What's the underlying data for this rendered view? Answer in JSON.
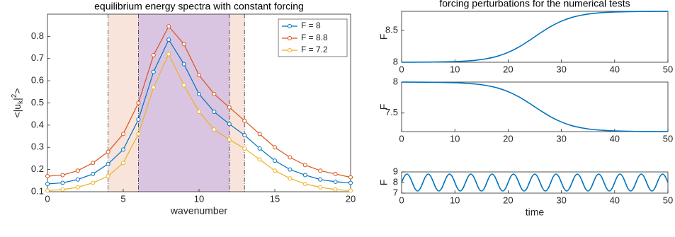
{
  "chart_data": [
    {
      "type": "line",
      "title": "equilibrium energy spectra with constant forcing",
      "xlabel": "wavenumber",
      "ylabel": {
        "base": "<|u",
        "sub": "k",
        "mid": "|",
        "sup": "2",
        "end": ">"
      },
      "x": [
        0,
        1,
        2,
        3,
        4,
        5,
        6,
        7,
        8,
        9,
        10,
        11,
        12,
        13,
        14,
        15,
        16,
        17,
        18,
        19,
        20
      ],
      "xlim": [
        0,
        20
      ],
      "xticks": [
        0,
        5,
        10,
        15,
        20
      ],
      "ylim": [
        0.1,
        0.9
      ],
      "yticks": [
        0.1,
        0.2,
        0.3,
        0.4,
        0.5,
        0.6,
        0.7,
        0.8
      ],
      "markers": true,
      "legend": "upper right",
      "shaded_regions": [
        {
          "x": [
            4,
            13
          ],
          "color": "#f8e4da"
        },
        {
          "x": [
            6,
            12
          ],
          "color": "#d9c5e2"
        }
      ],
      "series": [
        {
          "name": "F = 8",
          "color": "#0072bd",
          "values": [
            0.135,
            0.14,
            0.155,
            0.18,
            0.225,
            0.29,
            0.425,
            0.64,
            0.785,
            0.675,
            0.54,
            0.46,
            0.405,
            0.355,
            0.295,
            0.24,
            0.2,
            0.175,
            0.155,
            0.145,
            0.14
          ]
        },
        {
          "name": "F = 8.8",
          "color": "#d95319",
          "values": [
            0.17,
            0.175,
            0.195,
            0.23,
            0.28,
            0.36,
            0.5,
            0.715,
            0.845,
            0.765,
            0.625,
            0.54,
            0.48,
            0.42,
            0.36,
            0.3,
            0.255,
            0.22,
            0.195,
            0.18,
            0.165
          ]
        },
        {
          "name": "F = 7.2",
          "color": "#edb120",
          "values": [
            0.105,
            0.11,
            0.12,
            0.14,
            0.17,
            0.23,
            0.36,
            0.57,
            0.72,
            0.58,
            0.46,
            0.38,
            0.335,
            0.295,
            0.245,
            0.195,
            0.16,
            0.135,
            0.12,
            0.11,
            0.105
          ]
        }
      ]
    },
    {
      "type": "line",
      "title": "forcing perturbations for the numerical tests",
      "ylabel": "F",
      "x": [
        0,
        2,
        4,
        6,
        8,
        10,
        12,
        14,
        16,
        18,
        20,
        22,
        24,
        26,
        28,
        30,
        32,
        34,
        36,
        38,
        40,
        42,
        44,
        46,
        48,
        50
      ],
      "xlim": [
        0,
        50
      ],
      "xticks": [
        0,
        10,
        20,
        30,
        40,
        50
      ],
      "ylim": [
        8,
        8.8
      ],
      "yticks": [
        8,
        8.5
      ],
      "series": [
        {
          "color": "#0072bd",
          "values": [
            8.001,
            8.001,
            8.002,
            8.003,
            8.006,
            8.011,
            8.019,
            8.033,
            8.057,
            8.095,
            8.155,
            8.238,
            8.343,
            8.457,
            8.562,
            8.645,
            8.705,
            8.743,
            8.767,
            8.781,
            8.789,
            8.794,
            8.797,
            8.798,
            8.799,
            8.799
          ]
        }
      ]
    },
    {
      "type": "line",
      "ylabel": "F",
      "x": [
        0,
        2,
        4,
        6,
        8,
        10,
        12,
        14,
        16,
        18,
        20,
        22,
        24,
        26,
        28,
        30,
        32,
        34,
        36,
        38,
        40,
        42,
        44,
        46,
        48,
        50
      ],
      "xlim": [
        0,
        50
      ],
      "xticks": [
        0,
        10,
        20,
        30,
        40,
        50
      ],
      "ylim": [
        7.2,
        8
      ],
      "yticks": [
        7.5,
        8
      ],
      "series": [
        {
          "color": "#0072bd",
          "values": [
            7.999,
            7.999,
            7.998,
            7.997,
            7.994,
            7.989,
            7.981,
            7.967,
            7.943,
            7.905,
            7.845,
            7.762,
            7.657,
            7.543,
            7.438,
            7.355,
            7.295,
            7.257,
            7.233,
            7.219,
            7.211,
            7.206,
            7.203,
            7.202,
            7.201,
            7.201
          ]
        }
      ]
    },
    {
      "type": "line",
      "ylabel": "F",
      "xlabel": "time",
      "x": [
        0,
        0.5,
        1,
        1.5,
        2,
        2.5,
        3,
        3.5,
        4,
        4.5,
        5,
        5.5,
        6,
        6.5,
        7,
        7.5,
        8,
        8.5,
        9,
        9.5,
        10,
        10.5,
        11,
        11.5,
        12,
        12.5,
        13,
        13.5,
        14,
        14.5,
        15,
        15.5,
        16,
        16.5,
        17,
        17.5,
        18,
        18.5,
        19,
        19.5,
        20,
        20.5,
        21,
        21.5,
        22,
        22.5,
        23,
        23.5,
        24,
        24.5,
        25,
        25.5,
        26,
        26.5,
        27,
        27.5,
        28,
        28.5,
        29,
        29.5,
        30,
        30.5,
        31,
        31.5,
        32,
        32.5,
        33,
        33.5,
        34,
        34.5,
        35,
        35.5,
        36,
        36.5,
        37,
        37.5,
        38,
        38.5,
        39,
        39.5,
        40,
        40.5,
        41,
        41.5,
        42,
        42.5,
        43,
        43.5,
        44,
        44.5,
        45,
        45.5,
        46,
        46.5,
        47,
        47.5,
        48,
        48.5,
        49,
        49.5,
        50
      ],
      "xlim": [
        0,
        50
      ],
      "xticks": [
        0,
        10,
        20,
        30,
        40,
        50
      ],
      "ylim": [
        7,
        9
      ],
      "yticks": [
        7,
        8,
        9
      ],
      "series": [
        {
          "color": "#0072bd",
          "values": [
            8,
            8.566,
            8.8,
            8.566,
            8,
            7.434,
            7.2,
            7.434,
            8,
            8.566,
            8.8,
            8.566,
            8,
            7.434,
            7.2,
            7.434,
            8,
            8.566,
            8.8,
            8.566,
            8,
            7.434,
            7.2,
            7.434,
            8,
            8.566,
            8.8,
            8.566,
            8,
            7.434,
            7.2,
            7.434,
            8,
            8.566,
            8.8,
            8.566,
            8,
            7.434,
            7.2,
            7.434,
            8,
            8.566,
            8.8,
            8.566,
            8,
            7.434,
            7.2,
            7.434,
            8,
            8.566,
            8.8,
            8.566,
            8,
            7.434,
            7.2,
            7.434,
            8,
            8.566,
            8.8,
            8.566,
            8,
            7.434,
            7.2,
            7.434,
            8,
            8.566,
            8.8,
            8.566,
            8,
            7.434,
            7.2,
            7.434,
            8,
            8.566,
            8.8,
            8.566,
            8,
            7.434,
            7.2,
            7.434,
            8,
            8.566,
            8.8,
            8.566,
            8,
            7.434,
            7.2,
            7.434,
            8,
            8.566,
            8.8,
            8.566,
            8,
            7.434,
            7.2,
            7.434,
            8,
            8.566,
            8.8,
            8.566,
            8
          ]
        }
      ]
    }
  ]
}
